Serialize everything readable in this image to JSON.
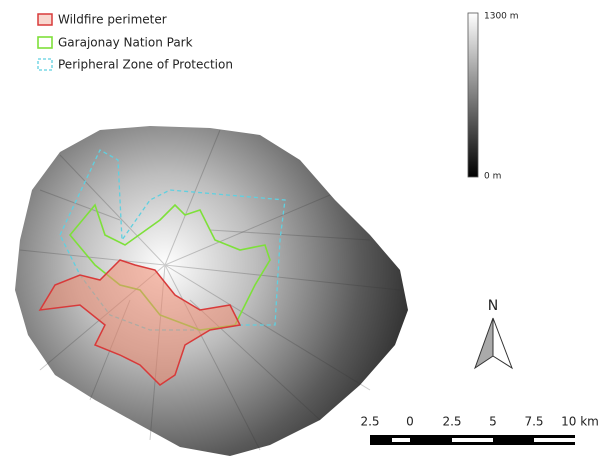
{
  "legend": {
    "items": [
      {
        "label": "Wildfire perimeter"
      },
      {
        "label": "Garajonay Nation Park"
      },
      {
        "label": "Peripheral Zone of Protection"
      }
    ]
  },
  "elevation_scale": {
    "max_label": "1300 m",
    "min_label": "0 m"
  },
  "north_arrow": {
    "label": "N"
  },
  "scale_bar": {
    "labels": [
      "2.5",
      "0",
      "2.5",
      "5",
      "7.5",
      "10 km"
    ]
  }
}
